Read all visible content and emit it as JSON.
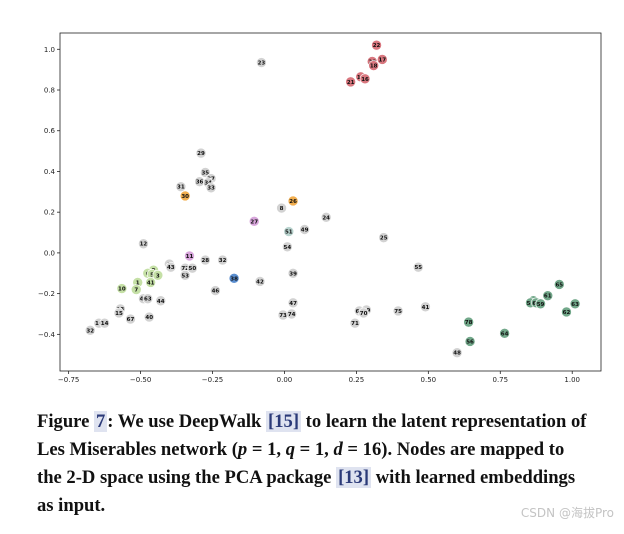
{
  "chart_data": {
    "type": "scatter",
    "title": "",
    "xlabel": "",
    "ylabel": "",
    "xlim": [
      -0.78,
      1.1
    ],
    "ylim": [
      -0.58,
      1.08
    ],
    "xticks": [
      -0.75,
      -0.5,
      -0.25,
      0.0,
      0.25,
      0.5,
      0.75,
      1.0
    ],
    "xtick_labels": [
      "−0.75",
      "−0.50",
      "−0.25",
      "0.00",
      "0.25",
      "0.50",
      "0.75",
      "1.00"
    ],
    "yticks": [
      -0.4,
      -0.2,
      0.0,
      0.2,
      0.4,
      0.6,
      0.8,
      1.0
    ],
    "ytick_labels": [
      "−0.4",
      "−0.2",
      "0.0",
      "0.2",
      "0.4",
      "0.6",
      "0.8",
      "1.0"
    ],
    "grid": false,
    "points": [
      {
        "label": "22",
        "x": 0.32,
        "y": 1.02,
        "color": "#d9777f"
      },
      {
        "label": "17",
        "x": 0.34,
        "y": 0.95,
        "color": "#d9777f"
      },
      {
        "label": "20",
        "x": 0.305,
        "y": 0.94,
        "color": "#d9777f"
      },
      {
        "label": "18",
        "x": 0.31,
        "y": 0.92,
        "color": "#d9777f"
      },
      {
        "label": "19",
        "x": 0.265,
        "y": 0.865,
        "color": "#d9777f"
      },
      {
        "label": "16",
        "x": 0.28,
        "y": 0.855,
        "color": "#d9777f"
      },
      {
        "label": "21",
        "x": 0.23,
        "y": 0.84,
        "color": "#d9777f"
      },
      {
        "label": "23",
        "x": -0.08,
        "y": 0.935,
        "color": "#d2d2d2"
      },
      {
        "label": "29",
        "x": -0.29,
        "y": 0.49,
        "color": "#d2d2d2"
      },
      {
        "label": "35",
        "x": -0.275,
        "y": 0.395,
        "color": "#d2d2d2"
      },
      {
        "label": "37",
        "x": -0.255,
        "y": 0.365,
        "color": "#d2d2d2"
      },
      {
        "label": "36",
        "x": -0.295,
        "y": 0.35,
        "color": "#d2d2d2"
      },
      {
        "label": "34",
        "x": -0.265,
        "y": 0.345,
        "color": "#d2d2d2"
      },
      {
        "label": "33",
        "x": -0.255,
        "y": 0.32,
        "color": "#d2d2d2"
      },
      {
        "label": "31",
        "x": -0.36,
        "y": 0.325,
        "color": "#d2d2d2"
      },
      {
        "label": "30",
        "x": -0.345,
        "y": 0.28,
        "color": "#f2ae4e"
      },
      {
        "label": "26",
        "x": 0.03,
        "y": 0.255,
        "color": "#f2ae4e"
      },
      {
        "label": "8",
        "x": -0.01,
        "y": 0.22,
        "color": "#d2d2d2"
      },
      {
        "label": "27",
        "x": -0.105,
        "y": 0.155,
        "color": "#d8a6dc"
      },
      {
        "label": "24",
        "x": 0.145,
        "y": 0.175,
        "color": "#d2d2d2"
      },
      {
        "label": "51",
        "x": 0.015,
        "y": 0.105,
        "color": "#b9d4cf"
      },
      {
        "label": "49",
        "x": 0.07,
        "y": 0.115,
        "color": "#d2d2d2"
      },
      {
        "label": "25",
        "x": 0.345,
        "y": 0.075,
        "color": "#d2d2d2"
      },
      {
        "label": "54",
        "x": 0.01,
        "y": 0.03,
        "color": "#d2d2d2"
      },
      {
        "label": "12",
        "x": -0.49,
        "y": 0.045,
        "color": "#d2d2d2"
      },
      {
        "label": "11",
        "x": -0.33,
        "y": -0.015,
        "color": "#d8a6dc"
      },
      {
        "label": "28",
        "x": -0.275,
        "y": -0.035,
        "color": "#d2d2d2"
      },
      {
        "label": "32",
        "x": -0.215,
        "y": -0.035,
        "color": "#d2d2d2"
      },
      {
        "label": "2",
        "x": -0.4,
        "y": -0.055,
        "color": "#d2d2d2"
      },
      {
        "label": "43",
        "x": -0.395,
        "y": -0.07,
        "color": "#d2d2d2"
      },
      {
        "label": "72",
        "x": -0.345,
        "y": -0.075,
        "color": "#d2d2d2"
      },
      {
        "label": "50",
        "x": -0.32,
        "y": -0.075,
        "color": "#d2d2d2"
      },
      {
        "label": "53",
        "x": -0.345,
        "y": -0.11,
        "color": "#d2d2d2"
      },
      {
        "label": "39",
        "x": 0.03,
        "y": -0.1,
        "color": "#d2d2d2"
      },
      {
        "label": "55",
        "x": 0.465,
        "y": -0.07,
        "color": "#d2d2d2"
      },
      {
        "label": "9",
        "x": -0.455,
        "y": -0.085,
        "color": "#c5e0a6"
      },
      {
        "label": "6",
        "x": -0.475,
        "y": -0.1,
        "color": "#c5e0a6"
      },
      {
        "label": "5",
        "x": -0.46,
        "y": -0.105,
        "color": "#c5e0a6"
      },
      {
        "label": "3",
        "x": -0.44,
        "y": -0.11,
        "color": "#c5e0a6"
      },
      {
        "label": "41",
        "x": -0.465,
        "y": -0.145,
        "color": "#c5e0a6"
      },
      {
        "label": "1",
        "x": -0.51,
        "y": -0.145,
        "color": "#c5e0a6"
      },
      {
        "label": "38",
        "x": -0.175,
        "y": -0.125,
        "color": "#5a8ed0"
      },
      {
        "label": "42",
        "x": -0.085,
        "y": -0.14,
        "color": "#d2d2d2"
      },
      {
        "label": "10",
        "x": -0.565,
        "y": -0.175,
        "color": "#c5e0a6"
      },
      {
        "label": "7",
        "x": -0.515,
        "y": -0.18,
        "color": "#c5e0a6"
      },
      {
        "label": "46",
        "x": -0.24,
        "y": -0.185,
        "color": "#d2d2d2"
      },
      {
        "label": "45",
        "x": -0.49,
        "y": -0.225,
        "color": "#d2d2d2"
      },
      {
        "label": "63",
        "x": -0.475,
        "y": -0.225,
        "color": "#d2d2d2"
      },
      {
        "label": "44",
        "x": -0.43,
        "y": -0.235,
        "color": "#d2d2d2"
      },
      {
        "label": "47",
        "x": 0.03,
        "y": -0.245,
        "color": "#d2d2d2"
      },
      {
        "label": "13",
        "x": -0.57,
        "y": -0.275,
        "color": "#d2d2d2"
      },
      {
        "label": "15",
        "x": -0.575,
        "y": -0.295,
        "color": "#d2d2d2"
      },
      {
        "label": "40",
        "x": -0.47,
        "y": -0.315,
        "color": "#d2d2d2"
      },
      {
        "label": "67",
        "x": -0.535,
        "y": -0.325,
        "color": "#d2d2d2"
      },
      {
        "label": "73",
        "x": -0.005,
        "y": -0.305,
        "color": "#d2d2d2"
      },
      {
        "label": "74",
        "x": 0.025,
        "y": -0.3,
        "color": "#d2d2d2"
      },
      {
        "label": "68",
        "x": 0.26,
        "y": -0.285,
        "color": "#d2d2d2"
      },
      {
        "label": "69",
        "x": 0.285,
        "y": -0.28,
        "color": "#d2d2d2"
      },
      {
        "label": "70",
        "x": 0.275,
        "y": -0.295,
        "color": "#d2d2d2"
      },
      {
        "label": "75",
        "x": 0.395,
        "y": -0.285,
        "color": "#d2d2d2"
      },
      {
        "label": "41",
        "x": 0.49,
        "y": -0.265,
        "color": "#d2d2d2"
      },
      {
        "label": "10",
        "x": -0.645,
        "y": -0.345,
        "color": "#d2d2d2"
      },
      {
        "label": "14",
        "x": -0.625,
        "y": -0.345,
        "color": "#d2d2d2"
      },
      {
        "label": "32",
        "x": -0.675,
        "y": -0.38,
        "color": "#d2d2d2"
      },
      {
        "label": "71",
        "x": 0.245,
        "y": -0.345,
        "color": "#d2d2d2"
      },
      {
        "label": "78",
        "x": 0.64,
        "y": -0.34,
        "color": "#72a88a"
      },
      {
        "label": "64",
        "x": 0.765,
        "y": -0.395,
        "color": "#72a88a"
      },
      {
        "label": "56",
        "x": 0.645,
        "y": -0.435,
        "color": "#72a88a"
      },
      {
        "label": "48",
        "x": 0.6,
        "y": -0.49,
        "color": "#d2d2d2"
      },
      {
        "label": "65",
        "x": 0.955,
        "y": -0.155,
        "color": "#72a88a"
      },
      {
        "label": "61",
        "x": 0.915,
        "y": -0.21,
        "color": "#72a88a"
      },
      {
        "label": "63",
        "x": 1.01,
        "y": -0.25,
        "color": "#72a88a"
      },
      {
        "label": "57",
        "x": 0.865,
        "y": -0.235,
        "color": "#72a88a"
      },
      {
        "label": "58",
        "x": 0.855,
        "y": -0.245,
        "color": "#72a88a"
      },
      {
        "label": "66",
        "x": 0.875,
        "y": -0.245,
        "color": "#72a88a"
      },
      {
        "label": "59",
        "x": 0.89,
        "y": -0.25,
        "color": "#72a88a"
      },
      {
        "label": "62",
        "x": 0.98,
        "y": -0.29,
        "color": "#72a88a"
      }
    ]
  },
  "caption": {
    "figure_word": "Figure",
    "figure_number": "7",
    "part1": ": We use DeepWalk ",
    "ref1": "[15]",
    "part2": " to learn the latent representation of Les Miserables network (",
    "p_var": "p",
    "p_eq": " = 1, ",
    "q_var": "q",
    "q_eq": " = 1, ",
    "d_var": "d",
    "d_eq": " = 16). Nodes are mapped to the 2-D space using the PCA package ",
    "ref2": "[13]",
    "part3": " with learned embeddings as input."
  },
  "watermark": "CSDN @海拔Pro"
}
